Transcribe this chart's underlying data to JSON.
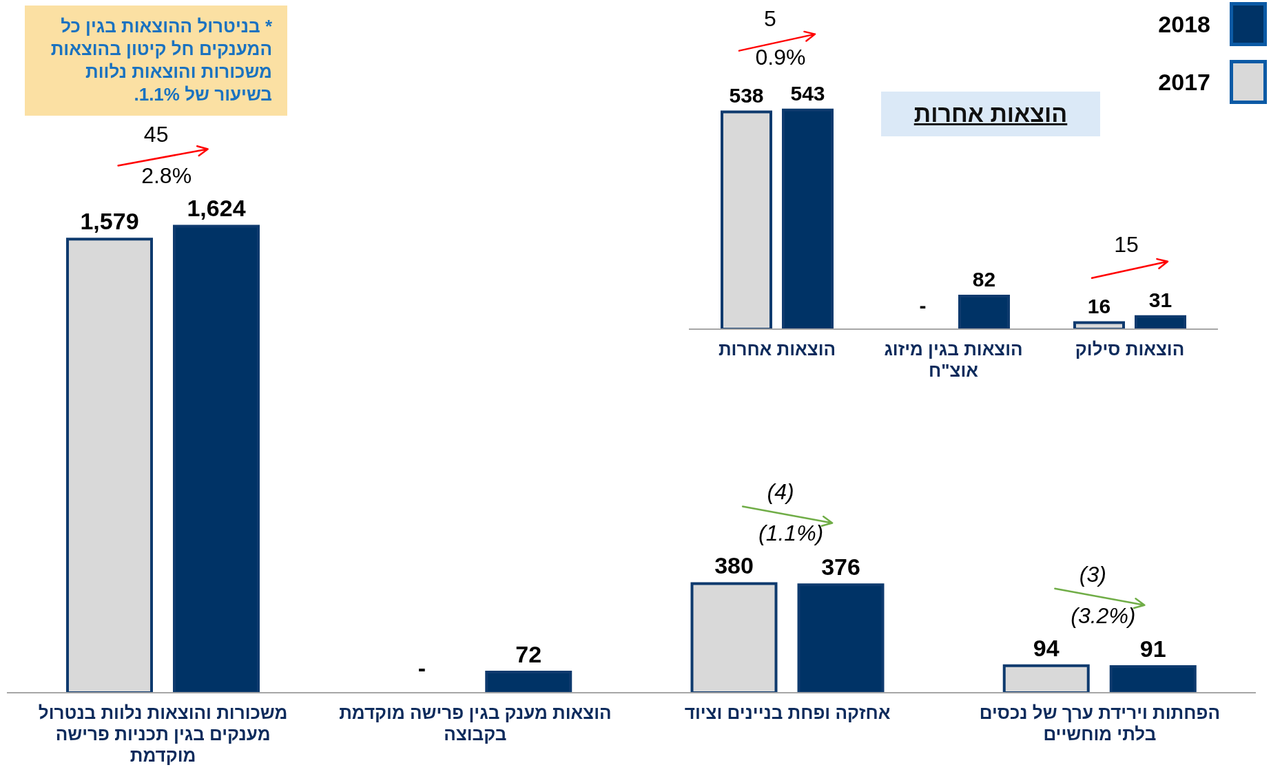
{
  "chart_data": [
    {
      "type": "bar",
      "categories": [
        "משכורות והוצאות נלוות בנטרול מענקים בגין תכניות פרישה מוקדמת",
        "הוצאות מענק בגין פרישה מוקדמת בקבוצה",
        "אחזקה ופחת בניינים וציוד",
        "הפחתות וירידת ערך של נכסים בלתי מוחשיים"
      ],
      "series": [
        {
          "name": "2017",
          "color": "#d9d9d9",
          "values": [
            1579,
            null,
            380,
            94
          ],
          "value_labels": [
            "1,579",
            "-",
            "380",
            "94"
          ]
        },
        {
          "name": "2018",
          "color": "#003366",
          "values": [
            1624,
            72,
            376,
            91
          ],
          "value_labels": [
            "1,624",
            "72",
            "376",
            "91"
          ]
        }
      ],
      "tick_labels": "x",
      "legend": "top right",
      "annotations": [
        "* בניטרול ההוצאות בגין כל המענקים חל קיטון בהוצאות משכורות והוצאות נלוות בשיעור של 1.1%.",
        "45",
        "2.8%",
        "(4)",
        "(1.1%)",
        "(3)",
        "(3.2%)"
      ]
    },
    {
      "type": "bar",
      "title": "הוצאות אחרות",
      "categories": [
        "הוצאות אחרות",
        "הוצאות בגין מיזוג אוצ\"ח",
        "הוצאות סילוק"
      ],
      "series": [
        {
          "name": "2017",
          "color": "#d9d9d9",
          "values": [
            538,
            null,
            16
          ],
          "value_labels": [
            "538",
            "-",
            "16"
          ]
        },
        {
          "name": "2018",
          "color": "#003366",
          "values": [
            543,
            82,
            31
          ],
          "value_labels": [
            "543",
            "82",
            "31"
          ]
        }
      ],
      "tick_labels": "x",
      "annotations": [
        "5",
        "0.9%",
        "15"
      ]
    }
  ]
}
